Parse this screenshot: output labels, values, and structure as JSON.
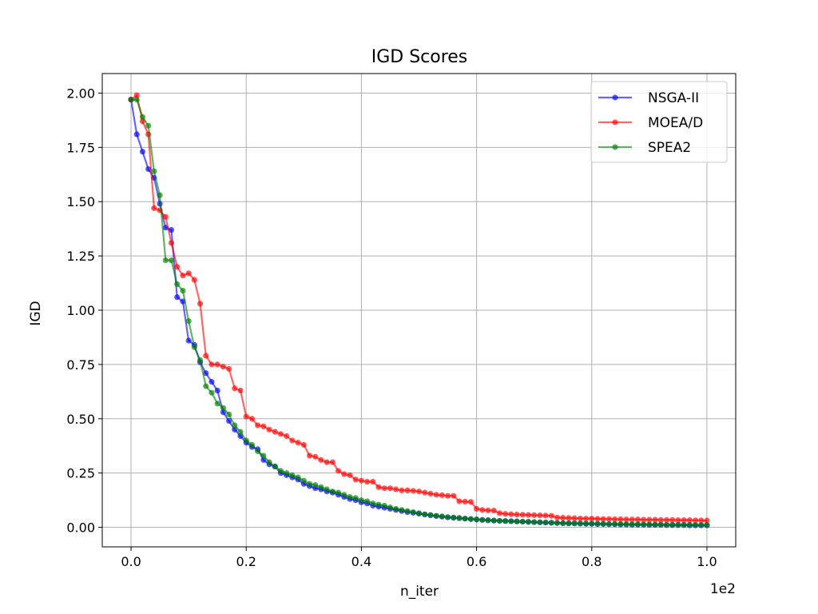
{
  "chart_data": {
    "type": "line",
    "title": "IGD Scores",
    "xlabel": "n_iter",
    "ylabel": "IGD",
    "x_offset_text": "1e2",
    "xlim": [
      -0.05,
      1.05
    ],
    "ylim": [
      -0.09,
      2.09
    ],
    "x_ticks": [
      0.0,
      0.2,
      0.4,
      0.6,
      0.8,
      1.0
    ],
    "x_tick_labels": [
      "0.0",
      "0.2",
      "0.4",
      "0.6",
      "0.8",
      "1.0"
    ],
    "y_ticks": [
      0.0,
      0.25,
      0.5,
      0.75,
      1.0,
      1.25,
      1.5,
      1.75,
      2.0
    ],
    "y_tick_labels": [
      "0.00",
      "0.25",
      "0.50",
      "0.75",
      "1.00",
      "1.25",
      "1.50",
      "1.75",
      "2.00"
    ],
    "grid": true,
    "legend_position": "top-right",
    "x": [
      0.0,
      0.01,
      0.02,
      0.03,
      0.04,
      0.05,
      0.06,
      0.07,
      0.08,
      0.09,
      0.1,
      0.11,
      0.12,
      0.13,
      0.14,
      0.15,
      0.16,
      0.17,
      0.18,
      0.19,
      0.2,
      0.21,
      0.22,
      0.23,
      0.24,
      0.25,
      0.26,
      0.27,
      0.28,
      0.29,
      0.3,
      0.31,
      0.32,
      0.33,
      0.34,
      0.35,
      0.36,
      0.37,
      0.38,
      0.39,
      0.4,
      0.41,
      0.42,
      0.43,
      0.44,
      0.45,
      0.46,
      0.47,
      0.48,
      0.49,
      0.5,
      0.51,
      0.52,
      0.53,
      0.54,
      0.55,
      0.56,
      0.57,
      0.58,
      0.59,
      0.6,
      0.61,
      0.62,
      0.63,
      0.64,
      0.65,
      0.66,
      0.67,
      0.68,
      0.69,
      0.7,
      0.71,
      0.72,
      0.73,
      0.74,
      0.75,
      0.76,
      0.77,
      0.78,
      0.79,
      0.8,
      0.81,
      0.82,
      0.83,
      0.84,
      0.85,
      0.86,
      0.87,
      0.88,
      0.89,
      0.9,
      0.91,
      0.92,
      0.93,
      0.94,
      0.95,
      0.96,
      0.97,
      0.98,
      0.99,
      1.0
    ],
    "series": [
      {
        "name": "NSGA-II",
        "color": "#0000ff",
        "values": [
          1.97,
          1.81,
          1.73,
          1.65,
          1.61,
          1.49,
          1.38,
          1.37,
          1.06,
          1.04,
          0.86,
          0.84,
          0.76,
          0.71,
          0.67,
          0.63,
          0.53,
          0.49,
          0.45,
          0.42,
          0.39,
          0.37,
          0.36,
          0.31,
          0.29,
          0.28,
          0.25,
          0.24,
          0.23,
          0.22,
          0.2,
          0.19,
          0.18,
          0.175,
          0.165,
          0.16,
          0.15,
          0.14,
          0.13,
          0.125,
          0.115,
          0.11,
          0.1,
          0.095,
          0.09,
          0.085,
          0.08,
          0.075,
          0.07,
          0.067,
          0.063,
          0.059,
          0.055,
          0.052,
          0.049,
          0.046,
          0.044,
          0.042,
          0.04,
          0.038,
          0.036,
          0.034,
          0.033,
          0.031,
          0.03,
          0.029,
          0.028,
          0.027,
          0.026,
          0.025,
          0.024,
          0.023,
          0.022,
          0.021,
          0.02,
          0.019,
          0.018,
          0.018,
          0.017,
          0.016,
          0.016,
          0.015,
          0.015,
          0.014,
          0.014,
          0.013,
          0.013,
          0.012,
          0.012,
          0.012,
          0.011,
          0.011,
          0.011,
          0.01,
          0.01,
          0.01,
          0.01,
          0.009,
          0.009,
          0.009,
          0.009
        ]
      },
      {
        "name": "MOEA/D",
        "color": "#ff0000",
        "values": [
          1.97,
          1.99,
          1.87,
          1.81,
          1.47,
          1.46,
          1.43,
          1.31,
          1.2,
          1.16,
          1.17,
          1.14,
          1.03,
          0.79,
          0.75,
          0.75,
          0.74,
          0.73,
          0.64,
          0.63,
          0.51,
          0.5,
          0.47,
          0.465,
          0.45,
          0.44,
          0.43,
          0.42,
          0.4,
          0.39,
          0.38,
          0.33,
          0.325,
          0.31,
          0.3,
          0.3,
          0.26,
          0.245,
          0.24,
          0.22,
          0.215,
          0.21,
          0.21,
          0.185,
          0.18,
          0.18,
          0.175,
          0.17,
          0.17,
          0.168,
          0.165,
          0.16,
          0.155,
          0.15,
          0.148,
          0.145,
          0.145,
          0.12,
          0.118,
          0.117,
          0.085,
          0.08,
          0.078,
          0.077,
          0.065,
          0.062,
          0.06,
          0.059,
          0.058,
          0.057,
          0.056,
          0.055,
          0.054,
          0.053,
          0.045,
          0.044,
          0.043,
          0.042,
          0.041,
          0.04,
          0.04,
          0.039,
          0.038,
          0.038,
          0.037,
          0.037,
          0.036,
          0.036,
          0.036,
          0.035,
          0.035,
          0.035,
          0.034,
          0.034,
          0.034,
          0.033,
          0.033,
          0.033,
          0.032,
          0.032,
          0.031
        ]
      },
      {
        "name": "SPEA2",
        "color": "#008000",
        "values": [
          1.97,
          1.97,
          1.89,
          1.85,
          1.64,
          1.53,
          1.23,
          1.23,
          1.12,
          1.09,
          0.95,
          0.83,
          0.77,
          0.65,
          0.62,
          0.57,
          0.55,
          0.52,
          0.47,
          0.44,
          0.4,
          0.38,
          0.35,
          0.33,
          0.3,
          0.28,
          0.26,
          0.25,
          0.24,
          0.23,
          0.215,
          0.2,
          0.195,
          0.185,
          0.175,
          0.165,
          0.16,
          0.15,
          0.14,
          0.135,
          0.125,
          0.12,
          0.11,
          0.105,
          0.1,
          0.092,
          0.085,
          0.08,
          0.075,
          0.07,
          0.065,
          0.06,
          0.057,
          0.053,
          0.05,
          0.047,
          0.045,
          0.043,
          0.04,
          0.038,
          0.036,
          0.034,
          0.032,
          0.031,
          0.03,
          0.029,
          0.028,
          0.027,
          0.026,
          0.025,
          0.024,
          0.023,
          0.022,
          0.021,
          0.02,
          0.019,
          0.019,
          0.018,
          0.018,
          0.017,
          0.017,
          0.016,
          0.016,
          0.015,
          0.015,
          0.015,
          0.014,
          0.014,
          0.014,
          0.013,
          0.013,
          0.013,
          0.013,
          0.012,
          0.012,
          0.012,
          0.012,
          0.012,
          0.011,
          0.011,
          0.011
        ]
      }
    ]
  }
}
